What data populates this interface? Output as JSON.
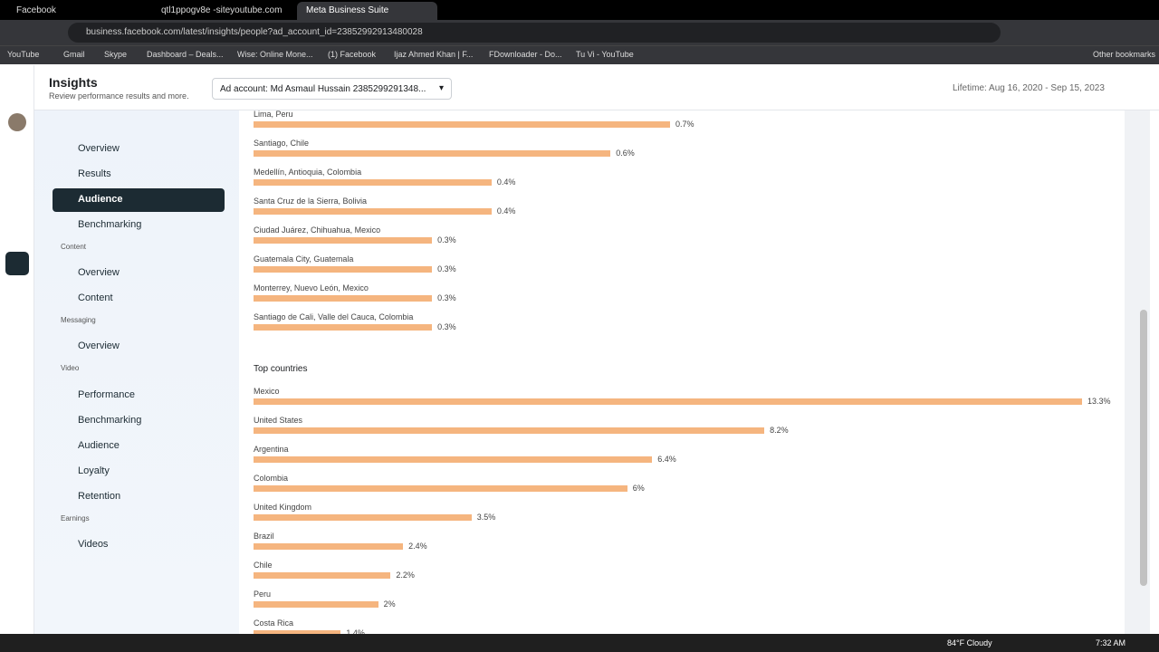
{
  "browser": {
    "tabs": [
      "Facebook",
      "qtl1ppogv8e -siteyoutube.com",
      "Meta Business Suite"
    ],
    "url": "business.facebook.com/latest/insights/people?ad_account_id=23852992913480028",
    "bookmarks": [
      "YouTube",
      "Gmail",
      "Skype",
      "Dashboard – Deals...",
      "Wise: Online Mone...",
      "(1) Facebook",
      "Ijaz Ahmed Khan | F...",
      "FDownloader - Do...",
      "Tu Vi - YouTube"
    ],
    "other_bookmarks": "Other bookmarks"
  },
  "header": {
    "title": "Insights",
    "subtitle": "Review performance results and more.",
    "ad_account": "Ad account: Md Asmaul Hussain 2385299291348...",
    "date_range": "Lifetime: Aug 16, 2020 - Sep 15, 2023"
  },
  "sidebar": {
    "sections": [
      {
        "items": [
          "Overview",
          "Results",
          "Audience",
          "Benchmarking"
        ]
      },
      {
        "heading": "Content",
        "items": [
          "Overview",
          "Content"
        ]
      },
      {
        "heading": "Messaging",
        "items": [
          "Overview"
        ]
      },
      {
        "heading": "Video",
        "items": [
          "Performance",
          "Benchmarking",
          "Audience",
          "Loyalty",
          "Retention"
        ]
      },
      {
        "heading": "Earnings",
        "items": [
          "Videos"
        ]
      }
    ]
  },
  "top_cities": {
    "categories": [
      "Lima, Peru",
      "Santiago, Chile",
      "Medellín, Antioquia, Colombia",
      "Santa Cruz de la Sierra, Bolivia",
      "Ciudad Juárez, Chihuahua, Mexico",
      "Guatemala City, Guatemala",
      "Monterrey, Nuevo León, Mexico",
      "Santiago de Cali, Valle del Cauca, Colombia"
    ],
    "values": [
      0.7,
      0.6,
      0.4,
      0.4,
      0.3,
      0.3,
      0.3,
      0.3
    ],
    "value_labels": [
      "0.7%",
      "0.6%",
      "0.4%",
      "0.4%",
      "0.3%",
      "0.3%",
      "0.3%",
      "0.3%"
    ]
  },
  "top_countries": {
    "title": "Top countries",
    "categories": [
      "Mexico",
      "United States",
      "Argentina",
      "Colombia",
      "United Kingdom",
      "Brazil",
      "Chile",
      "Peru",
      "Costa Rica"
    ],
    "values": [
      13.3,
      8.2,
      6.4,
      6,
      3.5,
      2.4,
      2.2,
      2,
      1.4
    ],
    "value_labels": [
      "13.3%",
      "8.2%",
      "6.4%",
      "6%",
      "3.5%",
      "2.4%",
      "2.2%",
      "2%",
      "1.4%"
    ]
  },
  "taskbar": {
    "weather": "84°F  Cloudy",
    "time": "7:32 AM"
  }
}
